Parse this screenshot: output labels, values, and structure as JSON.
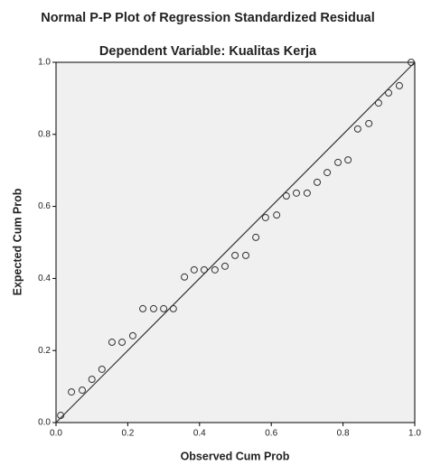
{
  "chart_data": {
    "type": "scatter",
    "title": "Normal P-P Plot of Regression Standardized Residual",
    "subtitle": "Dependent Variable: Kualitas Kerja",
    "x_label": "Observed Cum Prob",
    "y_label": "Expected Cum Prob",
    "xlim": [
      0,
      1
    ],
    "ylim": [
      0,
      1
    ],
    "xticks": [
      {
        "value": 0,
        "label": "0.0"
      },
      {
        "value": 0.2,
        "label": "0.2"
      },
      {
        "value": 0.4,
        "label": "0.4"
      },
      {
        "value": 0.6,
        "label": "0.6"
      },
      {
        "value": 0.8,
        "label": "0.8"
      },
      {
        "value": 1,
        "label": "1.0"
      }
    ],
    "yticks": [
      {
        "value": 0,
        "label": "0.0"
      },
      {
        "value": 0.2,
        "label": "0.2"
      },
      {
        "value": 0.4,
        "label": "0.4"
      },
      {
        "value": 0.6,
        "label": "0.6"
      },
      {
        "value": 0.8,
        "label": "0.8"
      },
      {
        "value": 1,
        "label": "1.0"
      }
    ],
    "reference_line": true,
    "series": [
      {
        "color": "#333333",
        "x": [
          0.013,
          0.043,
          0.073,
          0.1,
          0.128,
          0.156,
          0.184,
          0.214,
          0.242,
          0.272,
          0.3,
          0.327,
          0.358,
          0.385,
          0.413,
          0.443,
          0.471,
          0.499,
          0.529,
          0.557,
          0.584,
          0.615,
          0.642,
          0.67,
          0.7,
          0.728,
          0.756,
          0.786,
          0.814,
          0.841,
          0.872,
          0.899,
          0.927,
          0.957,
          0.99
        ],
        "values": [
          0.02,
          0.085,
          0.09,
          0.12,
          0.148,
          0.223,
          0.223,
          0.241,
          0.316,
          0.316,
          0.316,
          0.316,
          0.404,
          0.424,
          0.424,
          0.424,
          0.434,
          0.464,
          0.464,
          0.514,
          0.569,
          0.576,
          0.629,
          0.637,
          0.637,
          0.667,
          0.694,
          0.722,
          0.729,
          0.815,
          0.83,
          0.887,
          0.915,
          0.935,
          1.0
        ]
      }
    ]
  }
}
